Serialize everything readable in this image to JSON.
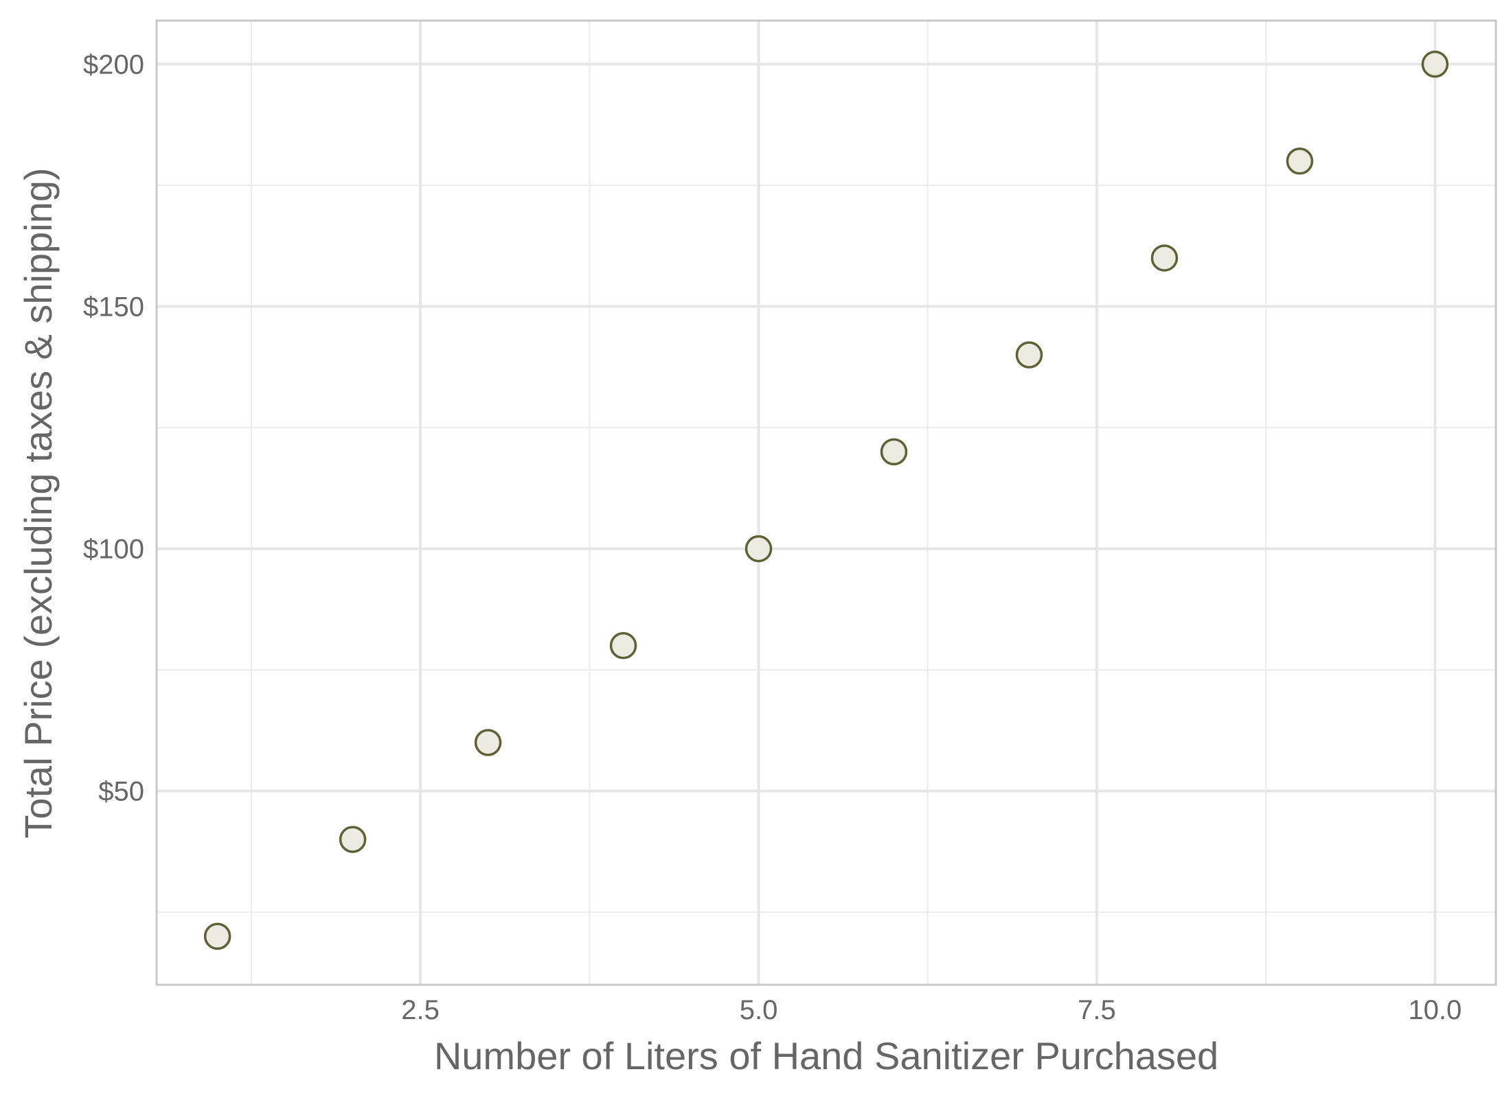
{
  "chart_data": {
    "type": "scatter",
    "title": "",
    "xlabel": "Number of Liters of Hand Sanitizer Purchased",
    "ylabel": "Total Price (excluding taxes & shipping)",
    "xlim": [
      0.55,
      10.45
    ],
    "ylim": [
      10,
      209
    ],
    "x_ticks": [
      {
        "value": 2.5,
        "label": "2.5"
      },
      {
        "value": 5.0,
        "label": "5.0"
      },
      {
        "value": 7.5,
        "label": "7.5"
      },
      {
        "value": 10.0,
        "label": "10.0"
      }
    ],
    "x_minor_ticks": [
      1.25,
      3.75,
      6.25,
      8.75
    ],
    "y_ticks": [
      {
        "value": 50,
        "label": "$50"
      },
      {
        "value": 100,
        "label": "$100"
      },
      {
        "value": 150,
        "label": "$150"
      },
      {
        "value": 200,
        "label": "$200"
      }
    ],
    "y_minor_ticks": [
      25,
      75,
      125,
      175
    ],
    "grid": true,
    "legend": "none",
    "point_fill": "#ebebe1",
    "point_stroke": "#5e6136",
    "points": [
      {
        "x": 1,
        "y": 20
      },
      {
        "x": 2,
        "y": 40
      },
      {
        "x": 3,
        "y": 60
      },
      {
        "x": 4,
        "y": 80
      },
      {
        "x": 5,
        "y": 100
      },
      {
        "x": 6,
        "y": 120
      },
      {
        "x": 7,
        "y": 140
      },
      {
        "x": 8,
        "y": 160
      },
      {
        "x": 9,
        "y": 180
      },
      {
        "x": 10,
        "y": 200
      }
    ]
  }
}
